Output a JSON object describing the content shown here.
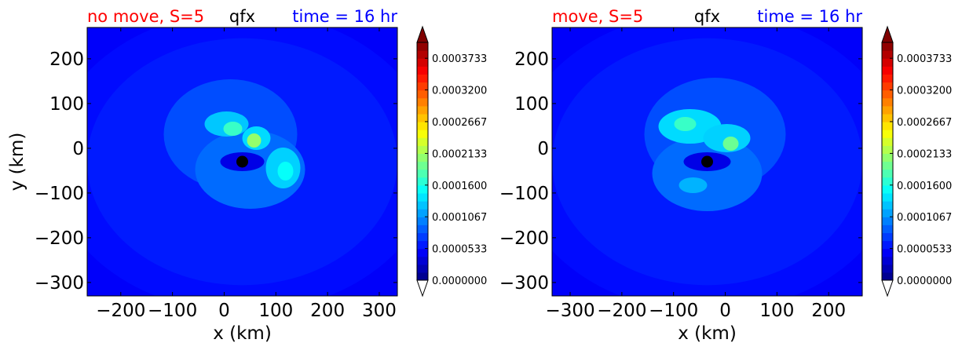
{
  "chart_data": [
    {
      "type": "heatmap",
      "title_left": "no move, S=5",
      "title_center": "qfx",
      "title_right": "time = 16 hr",
      "title_colors": {
        "left": "#ff0000",
        "center": "#000000",
        "right": "#0000ff"
      },
      "xlabel": "x (km)",
      "ylabel": "y (km)",
      "xlim": [
        -265,
        335
      ],
      "ylim": [
        -330,
        270
      ],
      "xticks": [
        -200,
        -100,
        0,
        100,
        200,
        300
      ],
      "xtick_labels": [
        "−200",
        "−100",
        "0",
        "100",
        "200",
        "300"
      ],
      "yticks": [
        200,
        100,
        0,
        -100,
        -200,
        -300
      ],
      "ytick_labels": [
        "200",
        "100",
        "0",
        "−100",
        "−200",
        "−300"
      ],
      "center_marker": [
        35,
        -30
      ],
      "colorbar": {
        "min": 0.0,
        "max": 0.0004,
        "ticks": [
          0.0,
          5.33e-05,
          0.0001067,
          0.00016,
          0.0002133,
          0.0002667,
          0.00032,
          0.0003733
        ],
        "tick_labels": [
          "0.0000000",
          "0.0000533",
          "0.0001067",
          "0.0001600",
          "0.0002133",
          "0.0002667",
          "0.0003200",
          "0.0003733"
        ],
        "extend": "both",
        "colormap": "jet"
      }
    },
    {
      "type": "heatmap",
      "title_left": "move, S=5",
      "title_center": "qfx",
      "title_right": "time = 16 hr",
      "title_colors": {
        "left": "#ff0000",
        "center": "#000000",
        "right": "#0000ff"
      },
      "xlabel": "x (km)",
      "ylabel": "",
      "xlim": [
        -335,
        265
      ],
      "ylim": [
        -330,
        270
      ],
      "xticks": [
        -300,
        -200,
        -100,
        0,
        100,
        200
      ],
      "xtick_labels": [
        "−300",
        "−200",
        "−100",
        "0",
        "100",
        "200"
      ],
      "yticks": [
        200,
        100,
        0,
        -100,
        -200,
        -300
      ],
      "ytick_labels": [
        "200",
        "100",
        "0",
        "−100",
        "−200",
        "−300"
      ],
      "center_marker": [
        -35,
        -30
      ],
      "colorbar": {
        "min": 0.0,
        "max": 0.0004,
        "ticks": [
          0.0,
          5.33e-05,
          0.0001067,
          0.00016,
          0.0002133,
          0.0002667,
          0.00032,
          0.0003733
        ],
        "tick_labels": [
          "0.0000000",
          "0.0000533",
          "0.0001067",
          "0.0001600",
          "0.0002133",
          "0.0002667",
          "0.0003200",
          "0.0003733"
        ],
        "extend": "both",
        "colormap": "jet"
      }
    }
  ]
}
